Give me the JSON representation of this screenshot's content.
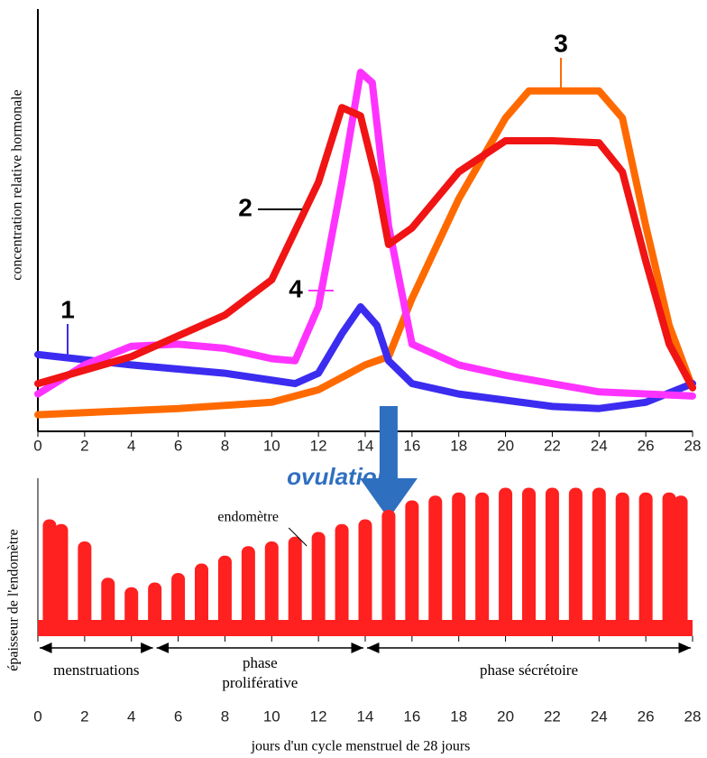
{
  "chart_data": [
    {
      "type": "line",
      "y_label": "concentration relative hormonale",
      "xlim": [
        0,
        28
      ],
      "ylim": [
        0,
        100
      ],
      "xticks": [
        0,
        2,
        4,
        6,
        8,
        10,
        12,
        14,
        16,
        18,
        20,
        22,
        24,
        26,
        28
      ],
      "ovulation": {
        "label": "ovulation",
        "x": 15
      },
      "series": [
        {
          "name": "1",
          "color": "#3b2cf0",
          "x": [
            0,
            4,
            8,
            11,
            12,
            13,
            13.8,
            14.5,
            15,
            16,
            18,
            20,
            22,
            24,
            26,
            28
          ],
          "values": [
            18.5,
            16,
            14,
            11.5,
            14,
            23.5,
            30,
            25.5,
            17,
            11.5,
            9,
            7.5,
            6,
            5.5,
            7,
            11.5
          ]
        },
        {
          "name": "2",
          "color": "#f01414",
          "x": [
            0,
            4,
            8,
            10,
            12,
            13,
            13.8,
            14.5,
            15,
            16,
            18,
            20,
            22,
            24,
            25,
            26,
            27,
            28
          ],
          "values": [
            11.5,
            18,
            28,
            36.5,
            60,
            78,
            76,
            60,
            45,
            49,
            62.5,
            70,
            70,
            69.5,
            62.5,
            41,
            21,
            10.5
          ]
        },
        {
          "name": "3",
          "color": "#ff6a00",
          "x": [
            0,
            6,
            10,
            12,
            14,
            15,
            16,
            18,
            20,
            21,
            24,
            25,
            26,
            27,
            28
          ],
          "values": [
            4,
            5.5,
            7,
            10,
            16,
            18,
            32,
            56,
            75.5,
            82,
            82,
            75.5,
            49.5,
            25.5,
            10.5
          ]
        },
        {
          "name": "4",
          "color": "#ff33ff",
          "x": [
            0,
            2,
            4,
            6,
            8,
            10,
            11,
            12,
            13,
            13.8,
            14.3,
            15,
            16,
            18,
            20,
            24,
            28
          ],
          "values": [
            9,
            16,
            20.5,
            21,
            20,
            17.5,
            17,
            30,
            60,
            86.5,
            84,
            49.5,
            21,
            16,
            13.5,
            9.5,
            8.5
          ]
        }
      ]
    },
    {
      "type": "bar",
      "y_label": "épaisseur de l'endomètre",
      "x_label": "jours d'un cycle menstruel de 28 jours",
      "annotation": {
        "text": "endomètre",
        "x": 11.5
      },
      "xlim": [
        0,
        28
      ],
      "ylim": [
        0,
        100
      ],
      "xticks": [
        0,
        2,
        4,
        6,
        8,
        10,
        12,
        14,
        16,
        18,
        20,
        22,
        24,
        26,
        28
      ],
      "color": "#ff2020",
      "x": [
        0.5,
        1,
        2,
        3,
        4,
        5,
        6,
        7,
        8,
        9,
        10,
        11,
        12,
        13,
        14,
        15,
        16,
        17,
        18,
        19,
        20,
        21,
        22,
        23,
        24,
        25,
        26,
        27,
        27.5
      ],
      "values": [
        74,
        71,
        60,
        37,
        31,
        34,
        40,
        46,
        51,
        57,
        60,
        63,
        66,
        71,
        74,
        80,
        86,
        89,
        91,
        91,
        94,
        94,
        94,
        94,
        94,
        91,
        91,
        91,
        89
      ],
      "phases": [
        {
          "label": [
            "menstruations"
          ],
          "start": 0,
          "end": 5
        },
        {
          "label": [
            "phase",
            "proliférative"
          ],
          "start": 5,
          "end": 14
        },
        {
          "label": [
            "phase sécrétoire"
          ],
          "start": 14,
          "end": 28
        }
      ]
    }
  ]
}
